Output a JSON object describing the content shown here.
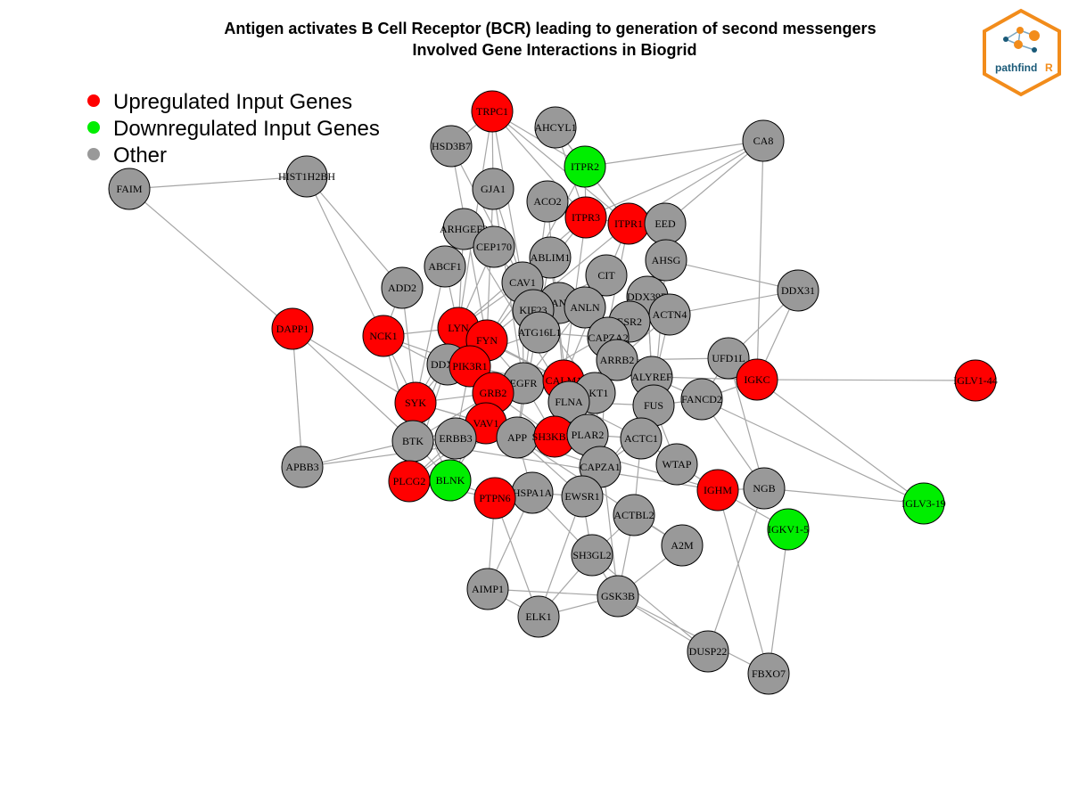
{
  "title": {
    "line1": "Antigen activates B Cell Receptor (BCR) leading to generation of second messengers",
    "line2": "Involved Gene Interactions in Biogrid"
  },
  "logo": {
    "text_main": "pathfind",
    "text_accent": "R",
    "main_color": "#1a5a78",
    "accent_color": "#f28c1b"
  },
  "legend": [
    {
      "label": "Upregulated Input Genes",
      "color": "#ff0000"
    },
    {
      "label": "Downregulated Input Genes",
      "color": "#00ee00"
    },
    {
      "label": "Other",
      "color": "#999999"
    }
  ],
  "colors": {
    "up": "#ff0000",
    "down": "#00ee00",
    "other": "#999999",
    "edge": "#a6a6a6"
  },
  "nodes": [
    {
      "name": "TRPC1",
      "status": "up"
    },
    {
      "name": "AHCYL1",
      "status": "other"
    },
    {
      "name": "HSD3B7",
      "status": "other"
    },
    {
      "name": "ITPR2",
      "status": "down"
    },
    {
      "name": "CA8",
      "status": "other"
    },
    {
      "name": "FAIM",
      "status": "other"
    },
    {
      "name": "HIST1H2BH",
      "status": "other"
    },
    {
      "name": "GJA1",
      "status": "other"
    },
    {
      "name": "ACO2",
      "status": "other"
    },
    {
      "name": "ITPR3",
      "status": "up"
    },
    {
      "name": "ITPR1",
      "status": "up"
    },
    {
      "name": "EED",
      "status": "other"
    },
    {
      "name": "ARHGEF2",
      "status": "other"
    },
    {
      "name": "CEP170",
      "status": "other"
    },
    {
      "name": "ABLIM1",
      "status": "other"
    },
    {
      "name": "AHSG",
      "status": "other"
    },
    {
      "name": "ABCF1",
      "status": "other"
    },
    {
      "name": "CIT",
      "status": "other"
    },
    {
      "name": "ADD2",
      "status": "other"
    },
    {
      "name": "CAV1",
      "status": "other"
    },
    {
      "name": "DDX31",
      "status": "other"
    },
    {
      "name": "DDX39B",
      "status": "other"
    },
    {
      "name": "CANX",
      "status": "other"
    },
    {
      "name": "KIF23",
      "status": "other"
    },
    {
      "name": "ANLN",
      "status": "other"
    },
    {
      "name": "ACTN4",
      "status": "other"
    },
    {
      "name": "ESR2",
      "status": "other"
    },
    {
      "name": "DAPP1",
      "status": "up"
    },
    {
      "name": "NCK1",
      "status": "up"
    },
    {
      "name": "LYN",
      "status": "up"
    },
    {
      "name": "FYN",
      "status": "up"
    },
    {
      "name": "ATG16L1",
      "status": "other"
    },
    {
      "name": "CAPZA2",
      "status": "other"
    },
    {
      "name": "DDX58",
      "status": "other"
    },
    {
      "name": "PIK3R1",
      "status": "up"
    },
    {
      "name": "UFD1L",
      "status": "other"
    },
    {
      "name": "ARRB2",
      "status": "other"
    },
    {
      "name": "IGKC",
      "status": "up"
    },
    {
      "name": "IGLV1-44",
      "status": "up"
    },
    {
      "name": "EGFR",
      "status": "other"
    },
    {
      "name": "CALM1",
      "status": "up"
    },
    {
      "name": "ALYREF",
      "status": "other"
    },
    {
      "name": "SYK",
      "status": "up"
    },
    {
      "name": "GRB2",
      "status": "up"
    },
    {
      "name": "AKT1",
      "status": "other"
    },
    {
      "name": "FANCD2",
      "status": "other"
    },
    {
      "name": "FLNA",
      "status": "other"
    },
    {
      "name": "FUS",
      "status": "other"
    },
    {
      "name": "VAV1",
      "status": "up"
    },
    {
      "name": "BTK",
      "status": "other"
    },
    {
      "name": "ERBB3",
      "status": "other"
    },
    {
      "name": "APP",
      "status": "other"
    },
    {
      "name": "SH3KBP1",
      "status": "up"
    },
    {
      "name": "PLAR2",
      "status": "other"
    },
    {
      "name": "ACTC1",
      "status": "other"
    },
    {
      "name": "APBB3",
      "status": "other"
    },
    {
      "name": "CAPZA1",
      "status": "other"
    },
    {
      "name": "WTAP",
      "status": "other"
    },
    {
      "name": "PLCG2",
      "status": "up"
    },
    {
      "name": "BLNK",
      "status": "down"
    },
    {
      "name": "IGHM",
      "status": "up"
    },
    {
      "name": "NGB",
      "status": "other"
    },
    {
      "name": "IGLV3-19",
      "status": "down"
    },
    {
      "name": "HSPA1A",
      "status": "other"
    },
    {
      "name": "PTPN6",
      "status": "up"
    },
    {
      "name": "EWSR1",
      "status": "other"
    },
    {
      "name": "ACTBL2",
      "status": "other"
    },
    {
      "name": "IGKV1-5",
      "status": "down"
    },
    {
      "name": "A2M",
      "status": "other"
    },
    {
      "name": "SH3GL2",
      "status": "other"
    },
    {
      "name": "AIMP1",
      "status": "other"
    },
    {
      "name": "GSK3B",
      "status": "other"
    },
    {
      "name": "ELK1",
      "status": "other"
    },
    {
      "name": "DUSP22",
      "status": "other"
    },
    {
      "name": "FBXO7",
      "status": "other"
    }
  ],
  "edges": [
    [
      "FAIM",
      "HIST1H2BH"
    ],
    [
      "FAIM",
      "DAPP1"
    ],
    [
      "HIST1H2BH",
      "NCK1"
    ],
    [
      "HIST1H2BH",
      "ADD2"
    ],
    [
      "DAPP1",
      "APBB3"
    ],
    [
      "DAPP1",
      "BTK"
    ],
    [
      "DAPP1",
      "SYK"
    ],
    [
      "APBB3",
      "APP"
    ],
    [
      "APBB3",
      "BTK"
    ],
    [
      "CA8",
      "ITPR2"
    ],
    [
      "CA8",
      "ITPR1"
    ],
    [
      "CA8",
      "ITPR3"
    ],
    [
      "CA8",
      "IGKC"
    ],
    [
      "CA8",
      "EED"
    ],
    [
      "DDX31",
      "ACTN4"
    ],
    [
      "DDX31",
      "AHSG"
    ],
    [
      "DDX31",
      "UFD1L"
    ],
    [
      "DDX31",
      "IGKC"
    ],
    [
      "IGLV1-44",
      "IGKC"
    ],
    [
      "IGLV3-19",
      "IGKC"
    ],
    [
      "IGLV3-19",
      "NGB"
    ],
    [
      "IGLV3-19",
      "FANCD2"
    ],
    [
      "IGKV1-5",
      "FBXO7"
    ],
    [
      "IGKV1-5",
      "IGHM"
    ],
    [
      "DUSP22",
      "GSK3B"
    ],
    [
      "DUSP22",
      "NGB"
    ],
    [
      "DUSP22",
      "SH3GL2"
    ],
    [
      "FBXO7",
      "GSK3B"
    ],
    [
      "FBXO7",
      "IGHM"
    ],
    [
      "TRPC1",
      "ITPR1"
    ],
    [
      "TRPC1",
      "ITPR2"
    ],
    [
      "TRPC1",
      "ITPR3"
    ],
    [
      "TRPC1",
      "CAV1"
    ],
    [
      "TRPC1",
      "LYN"
    ],
    [
      "TRPC1",
      "HSD3B7"
    ],
    [
      "TRPC1",
      "GJA1"
    ],
    [
      "AHCYL1",
      "ITPR1"
    ],
    [
      "AHCYL1",
      "ITPR3"
    ],
    [
      "AHCYL1",
      "ITPR2"
    ],
    [
      "HSD3B7",
      "CAV1"
    ],
    [
      "HSD3B7",
      "FYN"
    ],
    [
      "ITPR2",
      "ITPR1"
    ],
    [
      "ITPR2",
      "ITPR3"
    ],
    [
      "ITPR2",
      "CAV1"
    ],
    [
      "GJA1",
      "CAV1"
    ],
    [
      "GJA1",
      "FYN"
    ],
    [
      "GJA1",
      "EGFR"
    ],
    [
      "ACO2",
      "CALM1"
    ],
    [
      "ACO2",
      "APP"
    ],
    [
      "ITPR3",
      "CALM1"
    ],
    [
      "ITPR3",
      "ITPR1"
    ],
    [
      "ITPR3",
      "LYN"
    ],
    [
      "ITPR3",
      "FYN"
    ],
    [
      "ITPR1",
      "CALM1"
    ],
    [
      "ITPR1",
      "EED"
    ],
    [
      "ITPR1",
      "AKT1"
    ],
    [
      "ITPR1",
      "FYN"
    ],
    [
      "ARHGEF2",
      "LYN"
    ],
    [
      "ARHGEF2",
      "FLNA"
    ],
    [
      "CEP170",
      "LYN"
    ],
    [
      "CEP170",
      "AKT1"
    ],
    [
      "ABLIM1",
      "APP"
    ],
    [
      "ABLIM1",
      "FLNA"
    ],
    [
      "AHSG",
      "FUS"
    ],
    [
      "AHSG",
      "ESR2"
    ],
    [
      "ABCF1",
      "SYK"
    ],
    [
      "ABCF1",
      "LYN"
    ],
    [
      "CIT",
      "ANLN"
    ],
    [
      "CIT",
      "KIF23"
    ],
    [
      "CIT",
      "EGFR"
    ],
    [
      "ADD2",
      "SYK"
    ],
    [
      "ADD2",
      "NCK1"
    ],
    [
      "CAV1",
      "EGFR"
    ],
    [
      "CAV1",
      "FYN"
    ],
    [
      "CAV1",
      "LYN"
    ],
    [
      "CAV1",
      "CANX"
    ],
    [
      "DDX39B",
      "ALYREF"
    ],
    [
      "DDX39B",
      "FUS"
    ],
    [
      "KIF23",
      "ANLN"
    ],
    [
      "KIF23",
      "CANX"
    ],
    [
      "ACTN4",
      "ESR2"
    ],
    [
      "ACTN4",
      "FLNA"
    ],
    [
      "ACTN4",
      "ACTC1"
    ],
    [
      "NCK1",
      "SYK"
    ],
    [
      "NCK1",
      "BTK"
    ],
    [
      "NCK1",
      "GRB2"
    ],
    [
      "NCK1",
      "LYN"
    ],
    [
      "NCK1",
      "PIK3R1"
    ],
    [
      "LYN",
      "SYK"
    ],
    [
      "LYN",
      "BTK"
    ],
    [
      "LYN",
      "PIK3R1"
    ],
    [
      "LYN",
      "FYN"
    ],
    [
      "LYN",
      "CALM1"
    ],
    [
      "LYN",
      "GRB2"
    ],
    [
      "LYN",
      "VAV1"
    ],
    [
      "LYN",
      "PLCG2"
    ],
    [
      "FYN",
      "PIK3R1"
    ],
    [
      "FYN",
      "CALM1"
    ],
    [
      "FYN",
      "VAV1"
    ],
    [
      "FYN",
      "EGFR"
    ],
    [
      "PIK3R1",
      "GRB2"
    ],
    [
      "PIK3R1",
      "VAV1"
    ],
    [
      "PIK3R1",
      "EGFR"
    ],
    [
      "PIK3R1",
      "AKT1"
    ],
    [
      "PIK3R1",
      "ERBB3"
    ],
    [
      "SYK",
      "BTK"
    ],
    [
      "SYK",
      "PLCG2"
    ],
    [
      "SYK",
      "VAV1"
    ],
    [
      "SYK",
      "BLNK"
    ],
    [
      "SYK",
      "GRB2"
    ],
    [
      "GRB2",
      "VAV1"
    ],
    [
      "GRB2",
      "EGFR"
    ],
    [
      "GRB2",
      "SH3KBP1"
    ],
    [
      "GRB2",
      "BTK"
    ],
    [
      "GRB2",
      "ERBB3"
    ],
    [
      "VAV1",
      "PLCG2"
    ],
    [
      "VAV1",
      "BLNK"
    ],
    [
      "VAV1",
      "BTK"
    ],
    [
      "BTK",
      "PLCG2"
    ],
    [
      "BTK",
      "BLNK"
    ],
    [
      "PLCG2",
      "BLNK"
    ],
    [
      "PLCG2",
      "PTPN6"
    ],
    [
      "BLNK",
      "PTPN6"
    ],
    [
      "BLNK",
      "GRB2"
    ],
    [
      "CALM1",
      "FLNA"
    ],
    [
      "CALM1",
      "AKT1"
    ],
    [
      "CALM1",
      "EGFR"
    ],
    [
      "EGFR",
      "SH3KBP1"
    ],
    [
      "EGFR",
      "ERBB3"
    ],
    [
      "EGFR",
      "AKT1"
    ],
    [
      "EGFR",
      "ESR2"
    ],
    [
      "SH3KBP1",
      "CAPZA1"
    ],
    [
      "SH3KBP1",
      "PLAR2"
    ],
    [
      "AKT1",
      "ESR2"
    ],
    [
      "AKT1",
      "GSK3B"
    ],
    [
      "FLNA",
      "ACTC1"
    ],
    [
      "FLNA",
      "FUS"
    ],
    [
      "PTPN6",
      "AIMP1"
    ],
    [
      "PTPN6",
      "ELK1"
    ],
    [
      "PTPN6",
      "HSPA1A"
    ],
    [
      "HSPA1A",
      "EWSR1"
    ],
    [
      "HSPA1A",
      "SH3GL2"
    ],
    [
      "HSPA1A",
      "AIMP1"
    ],
    [
      "EWSR1",
      "SH3GL2"
    ],
    [
      "EWSR1",
      "FUS"
    ],
    [
      "EWSR1",
      "ELK1"
    ],
    [
      "ACTBL2",
      "SH3GL2"
    ],
    [
      "ACTBL2",
      "A2M"
    ],
    [
      "ACTBL2",
      "GSK3B"
    ],
    [
      "A2M",
      "APP"
    ],
    [
      "A2M",
      "GSK3B"
    ],
    [
      "SH3GL2",
      "GSK3B"
    ],
    [
      "SH3GL2",
      "ELK1"
    ],
    [
      "GSK3B",
      "ELK1"
    ],
    [
      "GSK3B",
      "AIMP1"
    ],
    [
      "AIMP1",
      "ELK1"
    ],
    [
      "WTAP",
      "FUS"
    ],
    [
      "WTAP",
      "IGHM"
    ],
    [
      "WTAP",
      "ACTC1"
    ],
    [
      "IGHM",
      "NGB"
    ],
    [
      "IGHM",
      "BTK"
    ],
    [
      "IGHM",
      "SYK"
    ],
    [
      "NGB",
      "FANCD2"
    ],
    [
      "NGB",
      "UFD1L"
    ],
    [
      "UFD1L",
      "IGKC"
    ],
    [
      "UFD1L",
      "FANCD2"
    ],
    [
      "UFD1L",
      "ARRB2"
    ],
    [
      "IGKC",
      "FANCD2"
    ],
    [
      "IGKC",
      "ALYREF"
    ],
    [
      "FANCD2",
      "FUS"
    ],
    [
      "FANCD2",
      "ALYREF"
    ],
    [
      "ARRB2",
      "CAPZA2"
    ],
    [
      "ARRB2",
      "AKT1"
    ],
    [
      "CAPZA2",
      "CAPZA1"
    ],
    [
      "CAPZA2",
      "ATG16L1"
    ],
    [
      "ATG16L1",
      "DDX58"
    ],
    [
      "DDX58",
      "EGFR"
    ],
    [
      "DDX58",
      "SYK"
    ],
    [
      "ERBB3",
      "BTK"
    ],
    [
      "ERBB3",
      "PLCG2"
    ],
    [
      "APP",
      "CAPZA1"
    ],
    [
      "APP",
      "EWSR1"
    ],
    [
      "APP",
      "HSPA1A"
    ],
    [
      "PLAR2",
      "ACTC1"
    ],
    [
      "PLAR2",
      "CAPZA1"
    ],
    [
      "ACTC1",
      "ACTBL2"
    ],
    [
      "ACTC1",
      "CAPZA1"
    ],
    [
      "ESR2",
      "CAPZA2"
    ],
    [
      "ANLN",
      "CAPZA2"
    ],
    [
      "CANX",
      "ATG16L1"
    ],
    [
      "ALYREF",
      "FUS"
    ],
    [
      "CAPZA1",
      "EWSR1"
    ]
  ]
}
